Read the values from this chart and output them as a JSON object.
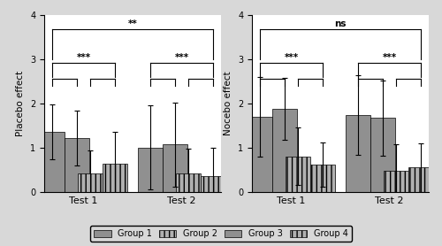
{
  "left_panel": {
    "ylabel": "Placebo effect",
    "ylim": [
      0,
      4
    ],
    "yticks": [
      0,
      1,
      2,
      3,
      4
    ],
    "test1": {
      "bars": [
        1.35,
        1.22,
        0.42,
        0.63
      ],
      "errors": [
        0.62,
        0.62,
        0.52,
        0.72
      ]
    },
    "test2": {
      "bars": [
        1.0,
        1.07,
        0.42,
        0.35
      ],
      "errors": [
        0.95,
        0.95,
        0.55,
        0.65
      ]
    },
    "inner_sig": "***",
    "outer_sig": "**"
  },
  "right_panel": {
    "ylabel": "Nocebo effect",
    "ylim": [
      0,
      4
    ],
    "yticks": [
      0,
      1,
      2,
      3,
      4
    ],
    "test1": {
      "bars": [
        1.7,
        1.87,
        0.8,
        0.62
      ],
      "errors": [
        0.9,
        0.7,
        0.65,
        0.5
      ]
    },
    "test2": {
      "bars": [
        1.73,
        1.67,
        0.48,
        0.55
      ],
      "errors": [
        0.9,
        0.85,
        0.6,
        0.55
      ]
    },
    "inner_sig": "***",
    "outer_sig": "ns"
  },
  "color_g1": "#909090",
  "color_g2": "#b0b0b0",
  "hatch_g1": "",
  "hatch_g2": "|||",
  "bar_width": 0.15,
  "background_color": "#d8d8d8",
  "plot_background": "#ffffff",
  "legend_labels": [
    "Group 1",
    "Group 2",
    "Group 3",
    "Group 4"
  ]
}
